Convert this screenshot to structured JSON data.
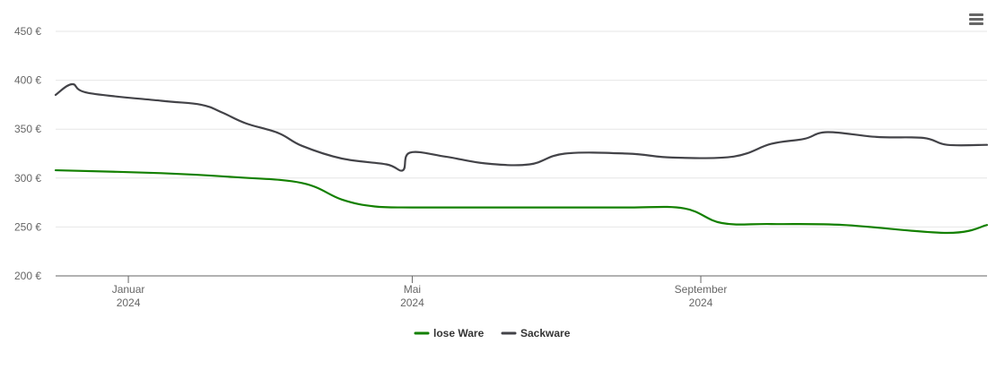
{
  "chart_data": {
    "type": "line",
    "yticks": [
      200,
      250,
      300,
      350,
      400,
      450
    ],
    "ytick_labels": [
      "200 €",
      "250 €",
      "300 €",
      "350 €",
      "400 €",
      "450 €"
    ],
    "ylim": [
      200,
      450
    ],
    "xlim": [
      "2023-12-01",
      "2025-01-01"
    ],
    "xticks": [
      {
        "date": "2024-01-01",
        "month": "Januar",
        "year": "2024"
      },
      {
        "date": "2024-05-01",
        "month": "Mai",
        "year": "2024"
      },
      {
        "date": "2024-09-01",
        "month": "September",
        "year": "2024"
      }
    ],
    "grid": true,
    "legend_position": "bottom-center",
    "series": [
      {
        "name": "lose Ware",
        "color": "#138000",
        "points": [
          [
            "2023-12-01",
            308
          ],
          [
            "2024-01-15",
            305
          ],
          [
            "2024-02-15",
            301
          ],
          [
            "2024-03-15",
            295
          ],
          [
            "2024-04-01",
            278
          ],
          [
            "2024-04-15",
            271
          ],
          [
            "2024-05-01",
            270
          ],
          [
            "2024-06-01",
            270
          ],
          [
            "2024-07-01",
            270
          ],
          [
            "2024-08-01",
            270
          ],
          [
            "2024-08-25",
            269
          ],
          [
            "2024-09-10",
            254
          ],
          [
            "2024-10-01",
            253
          ],
          [
            "2024-11-01",
            252
          ],
          [
            "2024-12-15",
            244
          ],
          [
            "2025-01-01",
            252
          ]
        ]
      },
      {
        "name": "Sackware",
        "color": "#434348",
        "points": [
          [
            "2023-12-01",
            385
          ],
          [
            "2023-12-08",
            396
          ],
          [
            "2023-12-15",
            387
          ],
          [
            "2024-01-15",
            379
          ],
          [
            "2024-02-01",
            375
          ],
          [
            "2024-02-10",
            367
          ],
          [
            "2024-02-20",
            356
          ],
          [
            "2024-03-05",
            346
          ],
          [
            "2024-03-15",
            333
          ],
          [
            "2024-04-01",
            320
          ],
          [
            "2024-04-20",
            314
          ],
          [
            "2024-04-27",
            308
          ],
          [
            "2024-04-30",
            326
          ],
          [
            "2024-05-15",
            322
          ],
          [
            "2024-06-01",
            315
          ],
          [
            "2024-06-20",
            314
          ],
          [
            "2024-07-05",
            325
          ],
          [
            "2024-08-01",
            325
          ],
          [
            "2024-08-20",
            321
          ],
          [
            "2024-09-15",
            322
          ],
          [
            "2024-10-01",
            335
          ],
          [
            "2024-10-15",
            340
          ],
          [
            "2024-10-25",
            347
          ],
          [
            "2024-11-15",
            342
          ],
          [
            "2024-12-05",
            341
          ],
          [
            "2024-12-15",
            334
          ],
          [
            "2025-01-01",
            334
          ]
        ]
      }
    ]
  },
  "menu": {
    "icon": "menu-icon"
  }
}
